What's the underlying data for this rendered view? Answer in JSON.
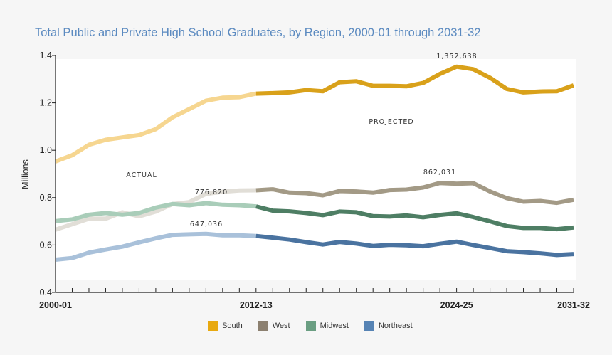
{
  "chart_data": {
    "type": "line",
    "title": "Total Public and Private High School Graduates, by Region, 2000-01 through 2031-32",
    "ylabel": "Millions",
    "xlabel": "",
    "ylim": [
      0.4,
      1.4
    ],
    "yticks": [
      "0.4",
      "0.6",
      "0.8",
      "1.0",
      "1.2",
      "1.4"
    ],
    "xticks_labeled": [
      "2000-01",
      "2012-13",
      "2024-25",
      "2031-32"
    ],
    "x_start": "2000-01",
    "x_end": "2031-32",
    "actual_through": "2012-13",
    "grid": false,
    "legend_position": "bottom",
    "annotations": {
      "actual": "ACTUAL",
      "projected": "PROJECTED",
      "midwest_peak": "776,820",
      "northeast_peak": "647,036",
      "south_peak": "1,352,638",
      "west_peak": "862,031"
    },
    "series": [
      {
        "name": "South",
        "color": "#d9a11a",
        "actual_color": "#f6d690",
        "values": [
          0.953,
          0.979,
          1.023,
          1.044,
          1.054,
          1.064,
          1.089,
          1.139,
          1.174,
          1.209,
          1.222,
          1.224,
          1.239,
          1.241,
          1.244,
          1.254,
          1.249,
          1.287,
          1.291,
          1.272,
          1.272,
          1.27,
          1.284,
          1.322,
          1.353,
          1.342,
          1.306,
          1.259,
          1.244,
          1.248,
          1.249,
          1.274
        ]
      },
      {
        "name": "West",
        "color": "#a39a86",
        "actual_color": "#e1ded7",
        "values": [
          0.665,
          0.688,
          0.711,
          0.711,
          0.738,
          0.721,
          0.741,
          0.773,
          0.781,
          0.816,
          0.825,
          0.83,
          0.831,
          0.835,
          0.821,
          0.819,
          0.81,
          0.828,
          0.826,
          0.821,
          0.832,
          0.834,
          0.843,
          0.862,
          0.859,
          0.861,
          0.826,
          0.798,
          0.783,
          0.786,
          0.778,
          0.791
        ]
      },
      {
        "name": "Midwest",
        "color": "#4e7e64",
        "actual_color": "#a9cdb9",
        "values": [
          0.701,
          0.708,
          0.728,
          0.735,
          0.728,
          0.735,
          0.758,
          0.773,
          0.768,
          0.777,
          0.77,
          0.768,
          0.763,
          0.745,
          0.742,
          0.735,
          0.726,
          0.741,
          0.738,
          0.722,
          0.72,
          0.725,
          0.717,
          0.727,
          0.734,
          0.718,
          0.7,
          0.68,
          0.672,
          0.672,
          0.667,
          0.674
        ]
      },
      {
        "name": "Northeast",
        "color": "#4a73a0",
        "actual_color": "#a9c1da",
        "values": [
          0.538,
          0.545,
          0.568,
          0.581,
          0.593,
          0.611,
          0.628,
          0.643,
          0.645,
          0.647,
          0.641,
          0.641,
          0.638,
          0.631,
          0.623,
          0.612,
          0.602,
          0.613,
          0.606,
          0.596,
          0.601,
          0.599,
          0.595,
          0.605,
          0.614,
          0.6,
          0.587,
          0.574,
          0.57,
          0.565,
          0.558,
          0.562
        ]
      }
    ]
  },
  "legend": [
    {
      "label": "South",
      "color": "#e8a910"
    },
    {
      "label": "West",
      "color": "#8c8070"
    },
    {
      "label": "Midwest",
      "color": "#6a9e82"
    },
    {
      "label": "Northeast",
      "color": "#5683b4"
    }
  ]
}
